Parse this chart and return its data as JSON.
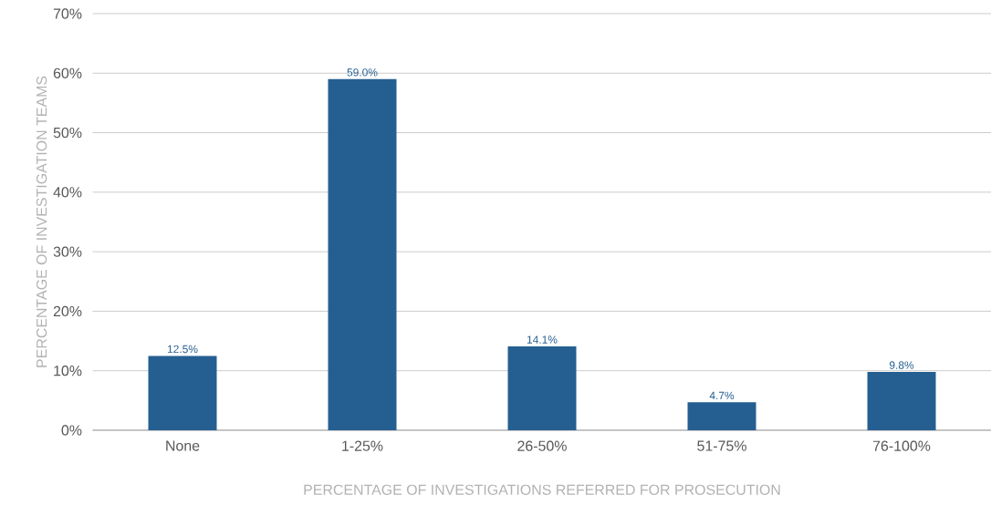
{
  "chart_data": {
    "type": "bar",
    "xlabel": "PERCENTAGE OF INVESTIGATIONS REFERRED FOR PROSECUTION",
    "ylabel": "PERCENTAGE OF INVESTIGATION TEAMS",
    "categories": [
      "None",
      "1-25%",
      "26-50%",
      "51-75%",
      "76-100%"
    ],
    "values": [
      12.5,
      59.0,
      14.1,
      4.7,
      9.8
    ],
    "value_labels": [
      "12.5%",
      "59.0%",
      "14.1%",
      "4.7%",
      "9.8%"
    ],
    "color": "#255f91",
    "ylim": [
      0,
      70
    ],
    "yticks": [
      {
        "value": 0,
        "label": "0%"
      },
      {
        "value": 10,
        "label": "10%"
      },
      {
        "value": 20,
        "label": "20%"
      },
      {
        "value": 30,
        "label": "30%"
      },
      {
        "value": 40,
        "label": "40%"
      },
      {
        "value": 50,
        "label": "50%"
      },
      {
        "value": 60,
        "label": "60%"
      },
      {
        "value": 70,
        "label": "70%"
      }
    ],
    "grid": "y"
  }
}
